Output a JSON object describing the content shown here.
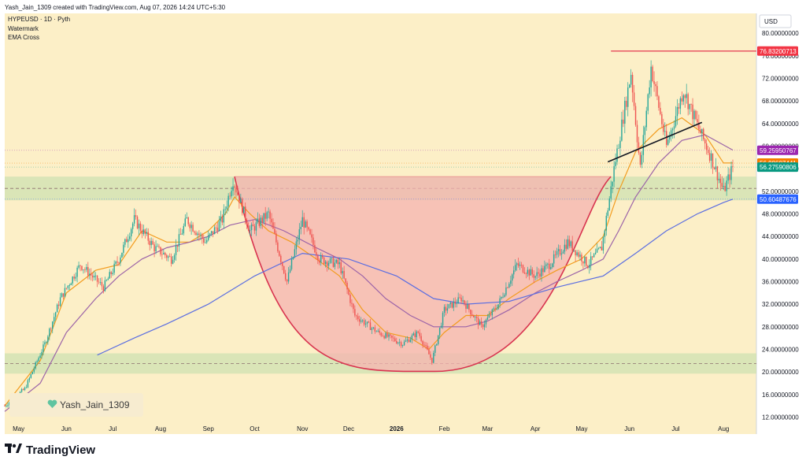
{
  "header": {
    "created_by": "Yash_Jain_1309 created with TradingView.com, Aug 07, 2026 14:24 UTC+5:30",
    "symbol_line": "HYPEUSD · 1D · Pyth",
    "indicator_1": "Watermark",
    "indicator_2": "EMA Cross"
  },
  "currency": "USD",
  "watermark": {
    "text": "Yash_Jain_1309",
    "icon": "heart-icon",
    "color": "#5fc4a0"
  },
  "branding": {
    "text": "TradingView",
    "icon": "tradingview-logo-icon"
  },
  "colors": {
    "background": "#fcefc7",
    "bull": "#26a69a",
    "bear": "#ef5350",
    "ema_fast": "#f29c1f",
    "ema_mid": "#9c64a8",
    "ema_slow": "#5b6ee1",
    "cup_fill": "#f6b3b0",
    "cup_line": "#d8344f",
    "zone_fill": "#d3e3b4",
    "resistance": "#e6475a",
    "trendline": "#131722"
  },
  "chart_data": {
    "type": "candlestick",
    "title": "HYPEUSD · 1D · Pyth",
    "ylim": [
      9.0,
      83.5
    ],
    "y_ticks": [
      "80.00000000",
      "76.00000000",
      "72.00000000",
      "68.00000000",
      "64.00000000",
      "60.00000000",
      "56.00000000",
      "52.00000000",
      "48.00000000",
      "44.00000000",
      "40.00000000",
      "36.00000000",
      "32.00000000",
      "28.00000000",
      "24.00000000",
      "20.00000000",
      "16.00000000",
      "12.00000000"
    ],
    "y_tick_values": [
      80,
      76,
      72,
      68,
      64,
      60,
      56,
      52,
      48,
      44,
      40,
      36,
      32,
      28,
      24,
      20,
      16,
      12
    ],
    "x_labels": [
      "May",
      "Jun",
      "Jul",
      "Aug",
      "Sep",
      "Oct",
      "Nov",
      "Dec",
      "2026",
      "Feb",
      "Mar",
      "Apr",
      "May",
      "Jun",
      "Jul",
      "Aug"
    ],
    "x_label_dates": [
      "2025-05-01",
      "2025-06-01",
      "2025-07-01",
      "2025-08-01",
      "2025-09-01",
      "2025-10-01",
      "2025-11-01",
      "2025-12-01",
      "2026-01-01",
      "2026-02-01",
      "2026-03-01",
      "2026-04-01",
      "2026-05-01",
      "2026-06-01",
      "2026-07-01",
      "2026-08-01"
    ],
    "x_range": [
      "2025-04-22",
      "2026-08-07"
    ],
    "price_labels": [
      {
        "value": 76.83200713,
        "text": "76.83200713",
        "color": "#f23645"
      },
      {
        "value": 59.25950767,
        "text": "59.25950767",
        "color": "#9c27b0"
      },
      {
        "value": 56.98607441,
        "text": "56.98607441",
        "color": "#f57c00"
      },
      {
        "value": 56.27590806,
        "text": "56.27590806",
        "color": "#089981"
      },
      {
        "value": 50.60487676,
        "text": "50.60487676",
        "color": "#2962ff"
      }
    ],
    "resistance": {
      "value": 76.83,
      "from": "2026-05-20",
      "to": "2026-08-07"
    },
    "support_zones": [
      [
        50.4,
        54.6
      ],
      [
        19.7,
        23.3
      ]
    ],
    "dashed_levels": [
      52.5,
      21.5
    ],
    "cup_pattern": {
      "rim": 54.6,
      "bottom": 20.1,
      "from": "2025-09-18",
      "to": "2026-05-20"
    },
    "trendline": {
      "from": [
        "2026-05-18",
        57.2
      ],
      "to": [
        "2026-07-18",
        64.2
      ]
    },
    "series": [
      {
        "name": "EMA fast",
        "points": [
          [
            "2025-04-22",
            14
          ],
          [
            "2025-05-15",
            22
          ],
          [
            "2025-06-01",
            34
          ],
          [
            "2025-06-20",
            38
          ],
          [
            "2025-07-05",
            39
          ],
          [
            "2025-07-20",
            45
          ],
          [
            "2025-08-05",
            43
          ],
          [
            "2025-08-20",
            43
          ],
          [
            "2025-09-01",
            45
          ],
          [
            "2025-09-12",
            48
          ],
          [
            "2025-09-18",
            51
          ],
          [
            "2025-09-28",
            48
          ],
          [
            "2025-10-10",
            45
          ],
          [
            "2025-10-25",
            43
          ],
          [
            "2025-11-10",
            40
          ],
          [
            "2025-11-25",
            37
          ],
          [
            "2025-12-10",
            31
          ],
          [
            "2025-12-25",
            27
          ],
          [
            "2026-01-10",
            26
          ],
          [
            "2026-01-22",
            24
          ],
          [
            "2026-02-01",
            27
          ],
          [
            "2026-02-15",
            30
          ],
          [
            "2026-03-01",
            30
          ],
          [
            "2026-03-15",
            33
          ],
          [
            "2026-04-01",
            36
          ],
          [
            "2026-04-15",
            38
          ],
          [
            "2026-05-01",
            40
          ],
          [
            "2026-05-15",
            44
          ],
          [
            "2026-05-25",
            52
          ],
          [
            "2026-06-05",
            59
          ],
          [
            "2026-06-20",
            63
          ],
          [
            "2026-07-05",
            65
          ],
          [
            "2026-07-20",
            62
          ],
          [
            "2026-08-01",
            57
          ],
          [
            "2026-08-07",
            57
          ]
        ]
      },
      {
        "name": "EMA mid",
        "points": [
          [
            "2025-04-22",
            13
          ],
          [
            "2025-05-15",
            18
          ],
          [
            "2025-06-01",
            27
          ],
          [
            "2025-06-20",
            33
          ],
          [
            "2025-07-05",
            37
          ],
          [
            "2025-07-20",
            40
          ],
          [
            "2025-08-05",
            42
          ],
          [
            "2025-08-20",
            43
          ],
          [
            "2025-09-01",
            44
          ],
          [
            "2025-09-15",
            46
          ],
          [
            "2025-10-01",
            47
          ],
          [
            "2025-10-20",
            45
          ],
          [
            "2025-11-10",
            42
          ],
          [
            "2025-11-25",
            40
          ],
          [
            "2025-12-10",
            37
          ],
          [
            "2025-12-25",
            33
          ],
          [
            "2026-01-10",
            30
          ],
          [
            "2026-01-25",
            28
          ],
          [
            "2026-02-15",
            28
          ],
          [
            "2026-03-01",
            29
          ],
          [
            "2026-03-15",
            31
          ],
          [
            "2026-04-01",
            34
          ],
          [
            "2026-04-15",
            36
          ],
          [
            "2026-05-01",
            38
          ],
          [
            "2026-05-15",
            40
          ],
          [
            "2026-05-25",
            45
          ],
          [
            "2026-06-05",
            51
          ],
          [
            "2026-06-20",
            57
          ],
          [
            "2026-07-05",
            61
          ],
          [
            "2026-07-20",
            62
          ],
          [
            "2026-08-07",
            59.3
          ]
        ]
      },
      {
        "name": "EMA slow",
        "points": [
          [
            "2025-06-21",
            23
          ],
          [
            "2025-07-15",
            26
          ],
          [
            "2025-08-05",
            28.5
          ],
          [
            "2025-09-01",
            32
          ],
          [
            "2025-10-01",
            37
          ],
          [
            "2025-11-01",
            41
          ],
          [
            "2025-12-01",
            40
          ],
          [
            "2026-01-01",
            37
          ],
          [
            "2026-01-25",
            33
          ],
          [
            "2026-02-15",
            32
          ],
          [
            "2026-03-15",
            32.5
          ],
          [
            "2026-04-15",
            35
          ],
          [
            "2026-05-15",
            37
          ],
          [
            "2026-06-05",
            41
          ],
          [
            "2026-06-25",
            45
          ],
          [
            "2026-07-15",
            48
          ],
          [
            "2026-08-01",
            50
          ],
          [
            "2026-08-07",
            50.6
          ]
        ]
      }
    ]
  }
}
